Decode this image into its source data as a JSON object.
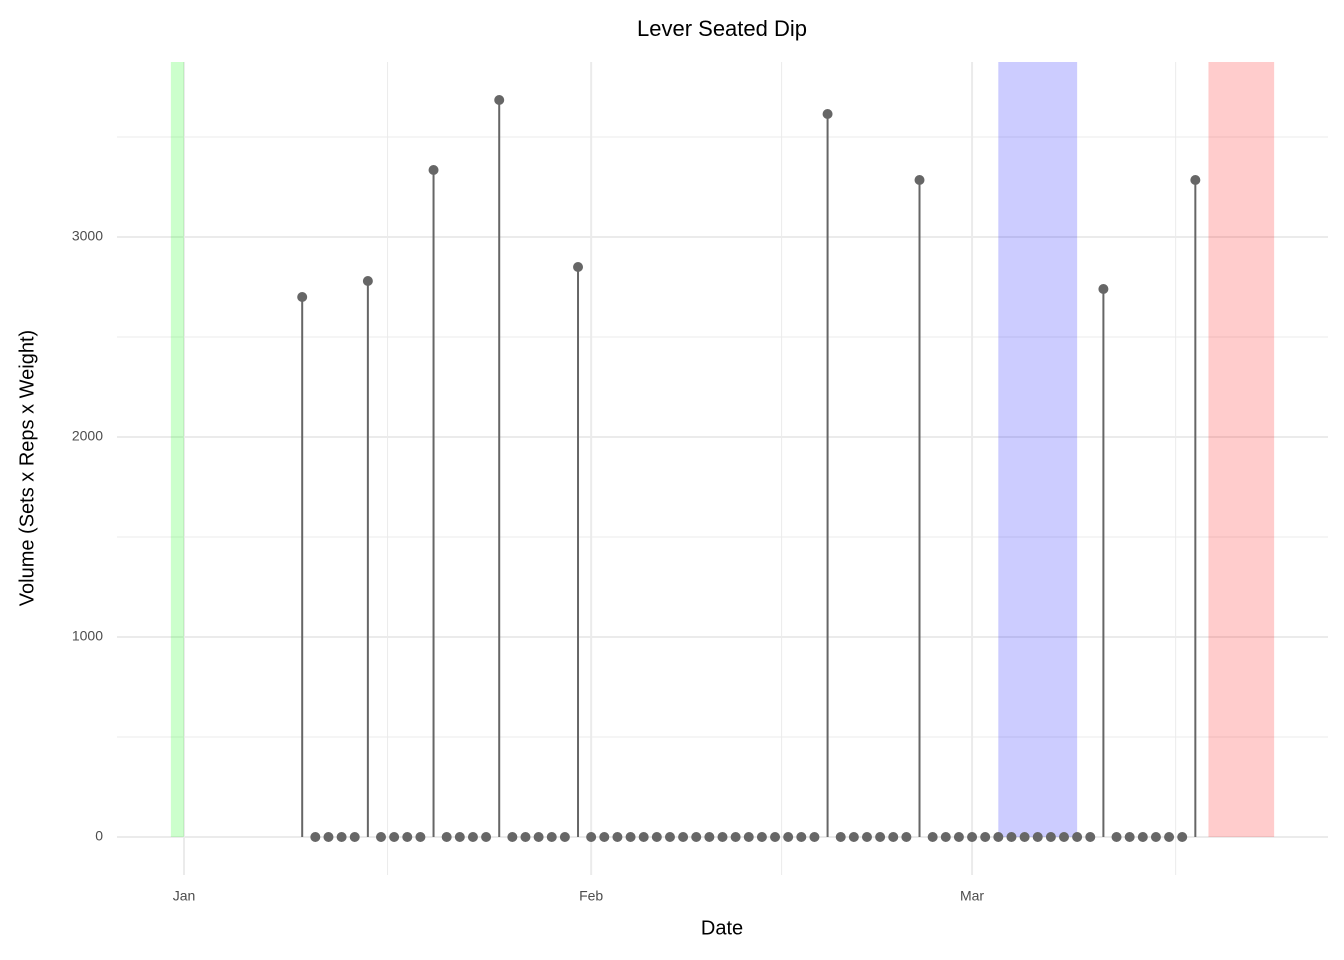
{
  "chart_data": {
    "type": "lollipop",
    "title": "Lever Seated Dip",
    "x_label": "Date",
    "y_label": "Volume (Sets x Reps x Weight)",
    "x": [
      9,
      10,
      11,
      12,
      13,
      14,
      15,
      16,
      17,
      18,
      19,
      20,
      21,
      22,
      23,
      24,
      25,
      26,
      27,
      28,
      29,
      30,
      31,
      32,
      33,
      34,
      35,
      36,
      37,
      38,
      39,
      40,
      41,
      42,
      43,
      44,
      45,
      46,
      47,
      48,
      49,
      50,
      51,
      52,
      53,
      54,
      55,
      56,
      57,
      58,
      59,
      60,
      61,
      62,
      63,
      64,
      65,
      66,
      67,
      68,
      69,
      70,
      71,
      72,
      73,
      74,
      75,
      76,
      77
    ],
    "values": [
      2700,
      0,
      0,
      0,
      0,
      2780,
      0,
      0,
      0,
      0,
      3335,
      0,
      0,
      0,
      0,
      3685,
      0,
      0,
      0,
      0,
      0,
      2850,
      0,
      0,
      0,
      0,
      0,
      0,
      0,
      0,
      0,
      0,
      0,
      0,
      0,
      0,
      0,
      0,
      0,
      0,
      3615,
      0,
      0,
      0,
      0,
      0,
      0,
      3285,
      0,
      0,
      0,
      0,
      0,
      0,
      0,
      0,
      0,
      0,
      0,
      0,
      0,
      2740,
      0,
      0,
      0,
      0,
      0,
      0,
      3285
    ],
    "color": "#666666",
    "bands": [
      {
        "xmin": -1,
        "xmax": 0,
        "color": "rgba(0,255,0,0.2)"
      },
      {
        "xmin": 62,
        "xmax": 68,
        "color": "rgba(0,0,255,0.2)"
      },
      {
        "xmin": 78,
        "xmax": 83,
        "color": "rgba(255,0,0,0.2)"
      }
    ],
    "xlim": [
      -5.1,
      87.1
    ],
    "xticks": [
      {
        "value": 0,
        "label": "Jan"
      },
      {
        "value": 31,
        "label": "Feb"
      },
      {
        "value": 60,
        "label": "Mar"
      }
    ],
    "xminor": [
      15.5,
      45.5,
      75.5
    ],
    "ylim": [
      -190,
      3875
    ],
    "yticks": [
      0,
      1000,
      2000,
      3000
    ],
    "yminor": [
      500,
      1500,
      2500,
      3500
    ],
    "grid": true
  }
}
